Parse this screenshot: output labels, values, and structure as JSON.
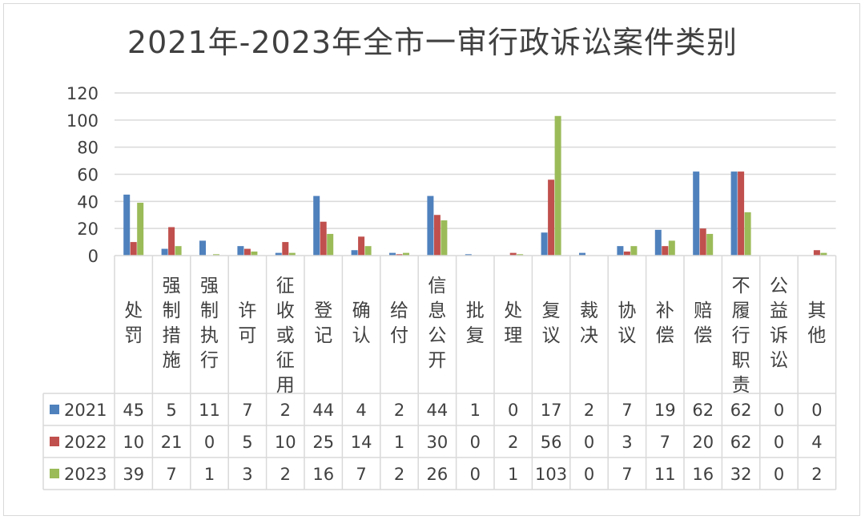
{
  "colors": {
    "2021": "#4f81bd",
    "2022": "#c0504d",
    "2023": "#9bbb59",
    "grid": "#d9d9d9",
    "text": "#404040"
  },
  "chart_data": {
    "type": "bar",
    "title": "2021年-2023年全市一审行政诉讼案件类别",
    "ylim": [
      0,
      120
    ],
    "yticks": [
      0,
      20,
      40,
      60,
      80,
      100,
      120
    ],
    "grid": true,
    "legend_position": "data-table",
    "categories": [
      "处罚",
      "强制措施",
      "强制执行",
      "许可",
      "征收或征用",
      "登记",
      "确认",
      "给付",
      "信息公开",
      "批复",
      "处理",
      "复议",
      "裁决",
      "协议",
      "补偿",
      "赔偿",
      "不履行职责",
      "公益诉讼",
      "其他"
    ],
    "series": [
      {
        "name": "2021",
        "values": [
          45,
          5,
          11,
          7,
          2,
          44,
          4,
          2,
          44,
          1,
          0,
          17,
          2,
          7,
          19,
          62,
          62,
          0,
          0
        ]
      },
      {
        "name": "2022",
        "values": [
          10,
          21,
          0,
          5,
          10,
          25,
          14,
          1,
          30,
          0,
          2,
          56,
          0,
          3,
          7,
          20,
          62,
          0,
          4
        ]
      },
      {
        "name": "2023",
        "values": [
          39,
          7,
          1,
          3,
          2,
          16,
          7,
          2,
          26,
          0,
          1,
          103,
          0,
          7,
          11,
          16,
          32,
          0,
          2
        ]
      }
    ]
  }
}
